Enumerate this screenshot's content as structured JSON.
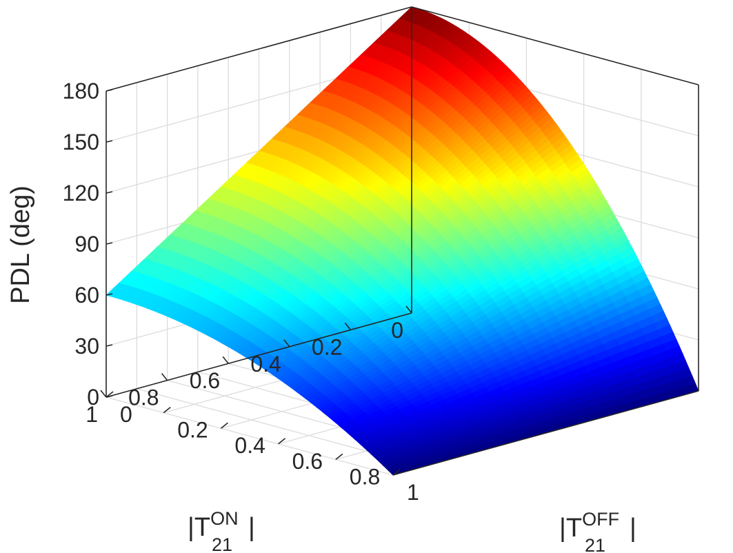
{
  "chart_data": {
    "type": "surface",
    "zlabel": "PDL (deg)",
    "xlabel": {
      "main": "|T",
      "sup": "ON",
      "sub": "21",
      "end": "|"
    },
    "ylabel": {
      "main": "|T",
      "sup": "OFF",
      "sub": "21",
      "end": "|"
    },
    "xlim": [
      0,
      1
    ],
    "ylim": [
      0,
      1
    ],
    "zlim": [
      0,
      180
    ],
    "x_ticks": [
      "0",
      "0.2",
      "0.4",
      "0.6",
      "0.8",
      "1"
    ],
    "y_ticks": [
      "0",
      "0.2",
      "0.4",
      "0.6",
      "0.8",
      "1"
    ],
    "z_ticks": [
      "0",
      "30",
      "60",
      "90",
      "120",
      "150",
      "180"
    ],
    "grid": true,
    "colormap": "jet",
    "surface": {
      "formula": "PDL = 180*(1-x)*(1-y^2) + 60*x*(1-y^2) (approximate)",
      "corners": [
        {
          "x": 0,
          "y": 0,
          "z": 180
        },
        {
          "x": 1,
          "y": 0,
          "z": 60
        },
        {
          "x": 0,
          "y": 1,
          "z": 0
        },
        {
          "x": 1,
          "y": 1,
          "z": 0
        }
      ]
    }
  }
}
